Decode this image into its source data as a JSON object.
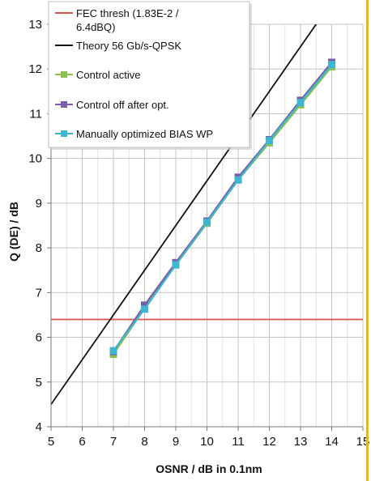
{
  "chart_data": {
    "type": "line",
    "xlabel": "OSNR / dB in 0.1nm",
    "ylabel": "Q (DE) / dB",
    "xlim": [
      5,
      15
    ],
    "ylim": [
      4,
      13
    ],
    "xticks": [
      5,
      6,
      7,
      8,
      9,
      10,
      11,
      12,
      13,
      14,
      15
    ],
    "yticks": [
      4,
      5,
      6,
      7,
      8,
      9,
      10,
      11,
      12,
      13
    ],
    "grid": true,
    "minor_grid_x": 0.5,
    "legend_position": "top-left",
    "series": [
      {
        "name": "FEC thresh (1.83E-2 / 6.4dBQ)",
        "legend_lines": [
          "FEC thresh (1.83E-2 /",
          "6.4dBQ)"
        ],
        "color": "#d9534f",
        "marker": "none",
        "x": [
          5,
          15
        ],
        "y": [
          6.4,
          6.4
        ]
      },
      {
        "name": "Theory 56 Gb/s-QPSK",
        "legend_lines": [
          "Theory 56 Gb/s-QPSK"
        ],
        "color": "#111111",
        "marker": "none",
        "x": [
          5,
          13.5
        ],
        "y": [
          4.5,
          13
        ]
      },
      {
        "name": "Control active",
        "legend_lines": [
          "Control active"
        ],
        "color": "#8cc152",
        "marker": "square",
        "x": [
          7,
          8,
          9,
          10,
          11,
          12,
          13,
          14
        ],
        "y": [
          5.62,
          6.65,
          7.62,
          8.55,
          9.52,
          10.35,
          11.2,
          12.05
        ]
      },
      {
        "name": "Control off after opt.",
        "legend_lines": [
          "Control off after opt."
        ],
        "color": "#7b5ea7",
        "marker": "square",
        "x": [
          7,
          8,
          9,
          10,
          11,
          12,
          13,
          14
        ],
        "y": [
          5.68,
          6.72,
          7.67,
          8.6,
          9.58,
          10.42,
          11.3,
          12.15
        ]
      },
      {
        "name": "Manually optimized BIAS WP",
        "legend_lines": [
          "Manually optimized BIAS WP"
        ],
        "color": "#3fb6cf",
        "marker": "square",
        "x": [
          7,
          8,
          9,
          10,
          11,
          12,
          13,
          14
        ],
        "y": [
          5.7,
          6.63,
          7.62,
          8.57,
          9.52,
          10.4,
          11.25,
          12.1
        ]
      }
    ]
  }
}
